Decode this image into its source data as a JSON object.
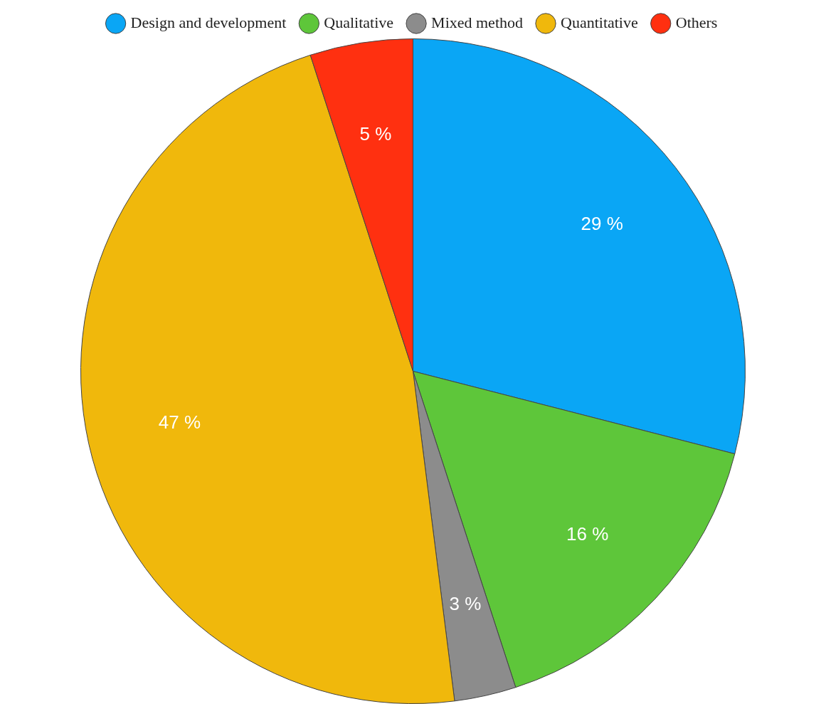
{
  "chart_data": {
    "type": "pie",
    "categories": [
      "Design and development",
      "Qualitative",
      "Mixed method",
      "Quantitative",
      "Others"
    ],
    "values": [
      29,
      16,
      3,
      47,
      5
    ],
    "value_labels": [
      "29 %",
      "16 %",
      "3 %",
      "47 %",
      "5 %"
    ],
    "colors": [
      "#0aa6f5",
      "#5ec63a",
      "#8c8c8c",
      "#f0b80c",
      "#ff3010"
    ],
    "legend": "top"
  }
}
